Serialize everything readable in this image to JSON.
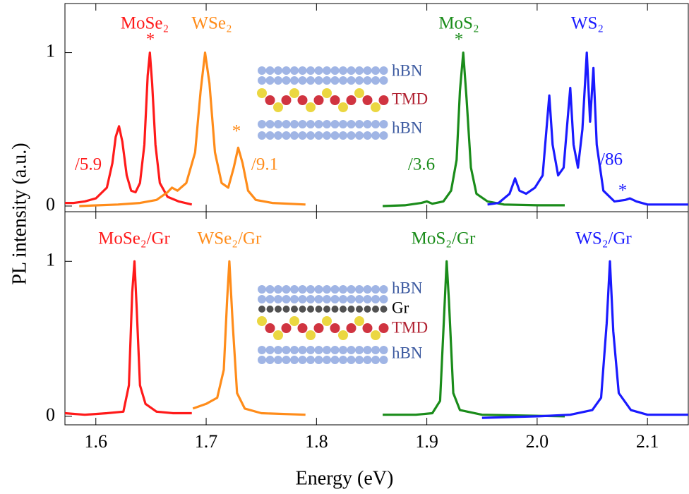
{
  "chart_data": [
    {
      "type": "line",
      "y_label": "PL intensity (a.u.)",
      "xlim": [
        1.572,
        2.137
      ],
      "ylim": [
        -0.037,
        1.32
      ],
      "yticks": [
        0,
        1
      ],
      "series": [
        {
          "name": "MoSe₂",
          "color": "#ff1a1a",
          "x": [
            1.572,
            1.58,
            1.59,
            1.6,
            1.61,
            1.615,
            1.618,
            1.621,
            1.624,
            1.628,
            1.632,
            1.636,
            1.64,
            1.644,
            1.647,
            1.649,
            1.651,
            1.654,
            1.658,
            1.665,
            1.675,
            1.687
          ],
          "values": [
            0.02,
            0.02,
            0.03,
            0.05,
            0.12,
            0.28,
            0.45,
            0.52,
            0.42,
            0.2,
            0.1,
            0.09,
            0.15,
            0.4,
            0.85,
            1.0,
            0.8,
            0.4,
            0.15,
            0.06,
            0.03,
            0.01
          ]
        },
        {
          "name": "WSe₂",
          "color": "#ff8c1a",
          "x": [
            1.585,
            1.62,
            1.64,
            1.655,
            1.665,
            1.669,
            1.674,
            1.682,
            1.69,
            1.695,
            1.699,
            1.703,
            1.708,
            1.714,
            1.72,
            1.725,
            1.729,
            1.733,
            1.738,
            1.745,
            1.76,
            1.79
          ],
          "values": [
            0.0,
            0.01,
            0.02,
            0.04,
            0.09,
            0.12,
            0.1,
            0.15,
            0.35,
            0.75,
            1.0,
            0.8,
            0.35,
            0.15,
            0.12,
            0.25,
            0.38,
            0.28,
            0.1,
            0.04,
            0.02,
            0.01
          ]
        },
        {
          "name": "MoS₂",
          "color": "#1a8c1a",
          "x": [
            1.86,
            1.88,
            1.895,
            1.9,
            1.905,
            1.915,
            1.922,
            1.927,
            1.93,
            1.933,
            1.936,
            1.94,
            1.945,
            1.955,
            1.97,
            2.0,
            2.025
          ],
          "values": [
            0.0,
            0.005,
            0.02,
            0.03,
            0.015,
            0.03,
            0.1,
            0.3,
            0.75,
            1.0,
            0.7,
            0.25,
            0.08,
            0.03,
            0.01,
            0.005,
            0.005
          ]
        },
        {
          "name": "WS₂",
          "color": "#1a1aff",
          "x": [
            1.955,
            1.965,
            1.975,
            1.98,
            1.984,
            1.99,
            1.998,
            2.005,
            2.009,
            2.011,
            2.014,
            2.019,
            2.024,
            2.028,
            2.03,
            2.033,
            2.037,
            2.041,
            2.045,
            2.048,
            2.051,
            2.054,
            2.06,
            2.07,
            2.08,
            2.084,
            2.09,
            2.1,
            2.137
          ],
          "values": [
            0.01,
            0.02,
            0.08,
            0.18,
            0.1,
            0.08,
            0.12,
            0.2,
            0.55,
            0.72,
            0.4,
            0.2,
            0.25,
            0.6,
            0.77,
            0.4,
            0.25,
            0.5,
            1.0,
            0.55,
            0.9,
            0.4,
            0.1,
            0.03,
            0.04,
            0.05,
            0.03,
            0.01,
            0.01
          ]
        }
      ],
      "annotations": [
        {
          "text": "*",
          "color": "#ff1a1a"
        },
        {
          "text": "/5.9",
          "color": "#ff1a1a"
        },
        {
          "text": "*",
          "color": "#ff8c1a"
        },
        {
          "text": "/9.1",
          "color": "#ff8c1a"
        },
        {
          "text": "*",
          "color": "#1a8c1a"
        },
        {
          "text": "/3.6",
          "color": "#1a8c1a"
        },
        {
          "text": "/86",
          "color": "#1a1aff"
        },
        {
          "text": "*",
          "color": "#1a1aff"
        }
      ],
      "layers": [
        "hBN",
        "TMD",
        "hBN"
      ]
    },
    {
      "type": "line",
      "x_label": "Energy (eV)",
      "xlim": [
        1.572,
        2.137
      ],
      "ylim": [
        -0.055,
        1.32
      ],
      "yticks": [
        0,
        1
      ],
      "xticks": [
        1.6,
        1.7,
        1.8,
        1.9,
        {
          "value": 2,
          "label": "2.0"
        },
        2.1
      ],
      "series": [
        {
          "name": "MoSe₂/Gr",
          "color": "#ff1a1a",
          "x": [
            1.572,
            1.59,
            1.61,
            1.625,
            1.63,
            1.633,
            1.635,
            1.637,
            1.64,
            1.645,
            1.655,
            1.67,
            1.687
          ],
          "values": [
            0.02,
            0.01,
            0.02,
            0.03,
            0.2,
            0.8,
            1.0,
            0.7,
            0.2,
            0.08,
            0.03,
            0.02,
            0.02
          ]
        },
        {
          "name": "WSe₂/Gr",
          "color": "#ff8c1a",
          "x": [
            1.688,
            1.7,
            1.71,
            1.716,
            1.719,
            1.721,
            1.724,
            1.728,
            1.735,
            1.75,
            1.79
          ],
          "values": [
            0.05,
            0.08,
            0.12,
            0.3,
            0.75,
            1.0,
            0.6,
            0.15,
            0.05,
            0.02,
            0.01
          ]
        },
        {
          "name": "MoS₂/Gr",
          "color": "#1a8c1a",
          "x": [
            1.86,
            1.89,
            1.905,
            1.912,
            1.916,
            1.918,
            1.92,
            1.924,
            1.93,
            1.95,
            2.025
          ],
          "values": [
            0.01,
            0.01,
            0.02,
            0.1,
            0.7,
            1.0,
            0.75,
            0.15,
            0.04,
            0.01,
            0.0
          ]
        },
        {
          "name": "WS₂/Gr",
          "color": "#1a1aff",
          "x": [
            1.95,
            2.0,
            2.03,
            2.05,
            2.058,
            2.063,
            2.066,
            2.069,
            2.074,
            2.085,
            2.1,
            2.137
          ],
          "values": [
            -0.01,
            0.0,
            0.01,
            0.04,
            0.12,
            0.6,
            1.0,
            0.55,
            0.15,
            0.04,
            0.01,
            0.01
          ]
        }
      ],
      "layers": [
        "hBN",
        "Gr",
        "TMD",
        "hBN"
      ]
    }
  ]
}
